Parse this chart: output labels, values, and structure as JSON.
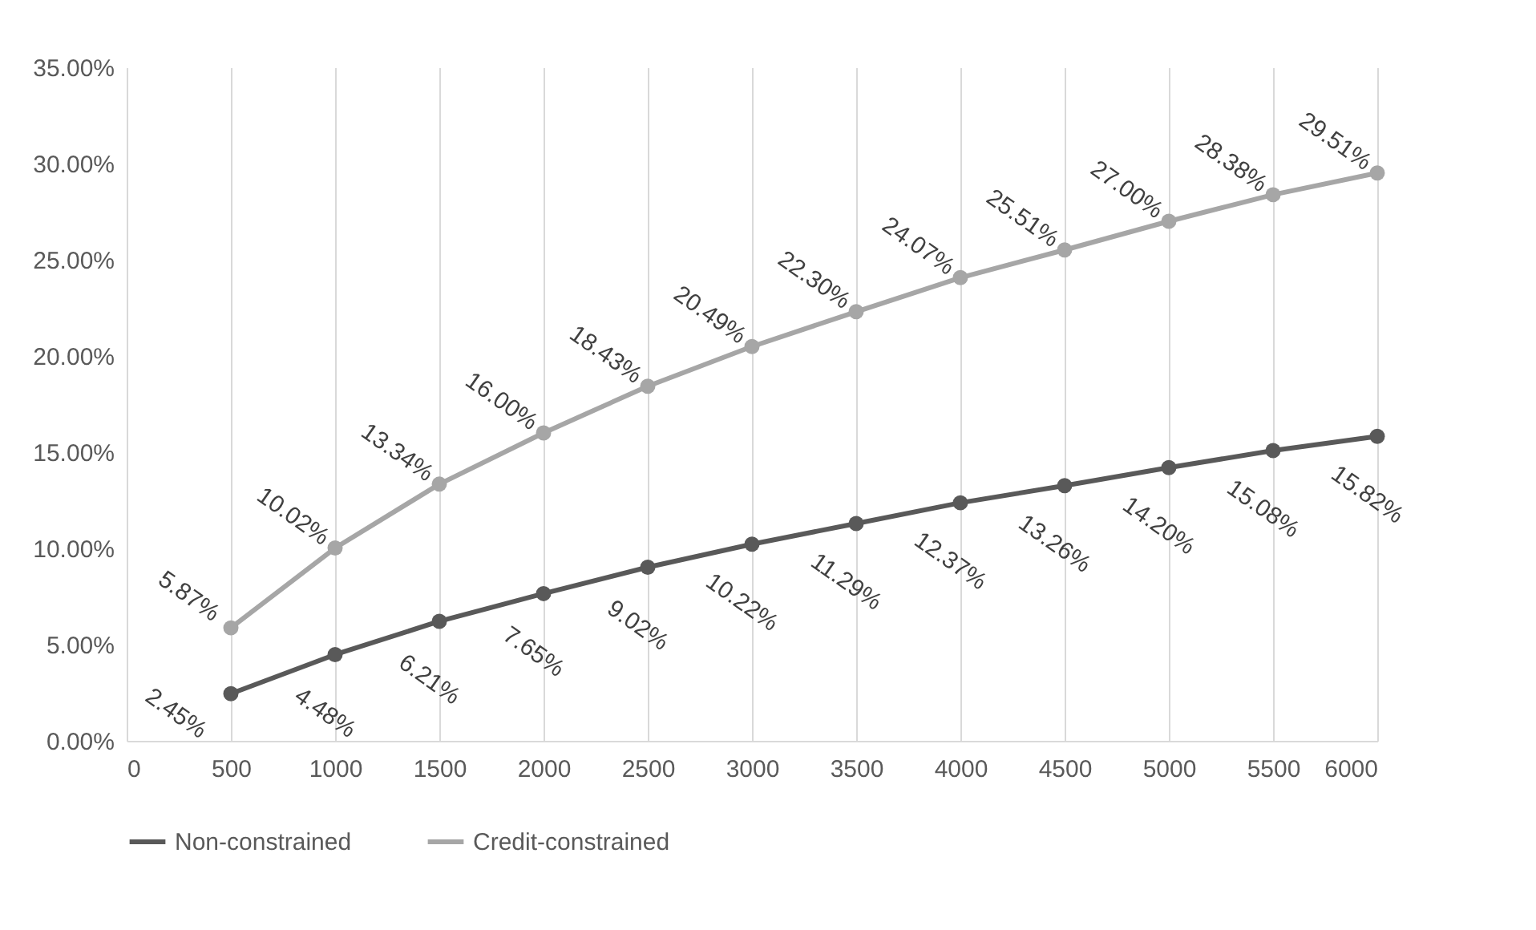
{
  "chart_data": {
    "type": "line",
    "x": [
      500,
      1000,
      1500,
      2000,
      2500,
      3000,
      3500,
      4000,
      4500,
      5000,
      5500,
      6000
    ],
    "series": [
      {
        "name": "Non-constrained",
        "color": "#595959",
        "values": [
          2.45,
          4.48,
          6.21,
          7.65,
          9.02,
          10.22,
          11.29,
          12.37,
          13.26,
          14.2,
          15.08,
          15.82
        ],
        "value_labels": [
          "2.45%",
          "4.48%",
          "6.21%",
          "7.65%",
          "9.02%",
          "10.22%",
          "11.29%",
          "12.37%",
          "13.26%",
          "14.20%",
          "15.08%",
          "15.82%"
        ]
      },
      {
        "name": "Credit-constrained",
        "color": "#a6a6a6",
        "values": [
          5.87,
          10.02,
          13.34,
          16.0,
          18.43,
          20.49,
          22.3,
          24.07,
          25.51,
          27.0,
          28.38,
          29.51
        ],
        "value_labels": [
          "5.87%",
          "10.02%",
          "13.34%",
          "16.00%",
          "18.43%",
          "20.49%",
          "22.30%",
          "24.07%",
          "25.51%",
          "27.00%",
          "28.38%",
          "29.51%"
        ]
      }
    ],
    "xlim": [
      0,
      6000
    ],
    "xticks": [
      0,
      500,
      1000,
      1500,
      2000,
      2500,
      3000,
      3500,
      4000,
      4500,
      5000,
      5500,
      6000
    ],
    "ylim": [
      0,
      35
    ],
    "yticks": [
      {
        "value": 0,
        "label": "0.00%"
      },
      {
        "value": 5,
        "label": "5.00%"
      },
      {
        "value": 10,
        "label": "10.00%"
      },
      {
        "value": 15,
        "label": "15.00%"
      },
      {
        "value": 20,
        "label": "20.00%"
      },
      {
        "value": 25,
        "label": "25.00%"
      },
      {
        "value": 30,
        "label": "30.00%"
      },
      {
        "value": 35,
        "label": "35.00%"
      }
    ],
    "grid": "x",
    "legend": "bottom",
    "marker": "circle",
    "line_style": "solid"
  }
}
